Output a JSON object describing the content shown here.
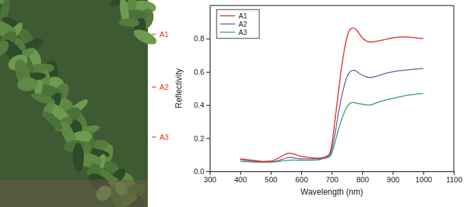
{
  "chart_data": {
    "type": "line",
    "x_label": "Wavelength (nm)",
    "y_label": "Reflectivity",
    "annotations": [
      "A1",
      "A2",
      "A3"
    ],
    "x": [
      400,
      425,
      450,
      475,
      500,
      525,
      550,
      560,
      575,
      600,
      625,
      650,
      675,
      690,
      700,
      710,
      720,
      730,
      740,
      750,
      760,
      770,
      780,
      790,
      800,
      810,
      825,
      850,
      875,
      900,
      925,
      950,
      975,
      1000
    ],
    "series": [
      {
        "name": "A1",
        "color": "#e8302a",
        "values": [
          0.075,
          0.07,
          0.065,
          0.06,
          0.062,
          0.08,
          0.105,
          0.11,
          0.105,
          0.09,
          0.085,
          0.08,
          0.085,
          0.1,
          0.16,
          0.3,
          0.45,
          0.6,
          0.72,
          0.81,
          0.855,
          0.865,
          0.855,
          0.83,
          0.805,
          0.79,
          0.78,
          0.785,
          0.795,
          0.805,
          0.81,
          0.81,
          0.805,
          0.8
        ]
      },
      {
        "name": "A2",
        "color": "#6b6b9e",
        "values": [
          0.07,
          0.065,
          0.06,
          0.058,
          0.058,
          0.065,
          0.08,
          0.085,
          0.082,
          0.075,
          0.075,
          0.075,
          0.08,
          0.09,
          0.13,
          0.22,
          0.33,
          0.43,
          0.51,
          0.57,
          0.6,
          0.61,
          0.605,
          0.59,
          0.58,
          0.572,
          0.565,
          0.575,
          0.59,
          0.6,
          0.607,
          0.612,
          0.617,
          0.62
        ]
      },
      {
        "name": "A3",
        "color": "#3aa87a",
        "values": [
          0.06,
          0.058,
          0.055,
          0.055,
          0.055,
          0.06,
          0.065,
          0.067,
          0.068,
          0.066,
          0.067,
          0.068,
          0.078,
          0.085,
          0.11,
          0.17,
          0.24,
          0.3,
          0.35,
          0.39,
          0.41,
          0.415,
          0.412,
          0.408,
          0.405,
          0.402,
          0.4,
          0.415,
          0.43,
          0.44,
          0.45,
          0.46,
          0.465,
          0.47
        ]
      }
    ],
    "xlim": [
      300,
      1100
    ],
    "xticks": [
      300,
      400,
      500,
      600,
      700,
      800,
      900,
      1000,
      1100
    ],
    "ylim": [
      0,
      1.0
    ],
    "yticks": [
      {
        "value": 0,
        "label": "0.0"
      },
      {
        "value": 0.2,
        "label": "0.2"
      },
      {
        "value": 0.4,
        "label": "0.4"
      },
      {
        "value": 0.6,
        "label": "0.6"
      },
      {
        "value": 0.8,
        "label": "0.8"
      }
    ],
    "legend": "upper-left",
    "grid": false
  }
}
